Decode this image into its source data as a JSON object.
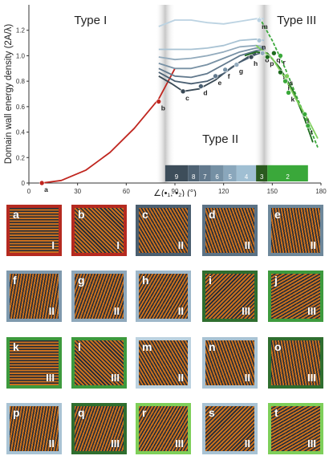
{
  "chart_data": {
    "type": "line",
    "ylabel": "Domain wall energy density (2A/λ)",
    "xlabel": "∠(•₁, •₂) (°)",
    "xlim": [
      0,
      180
    ],
    "ylim": [
      0,
      1.4
    ],
    "xticks": [
      "0",
      "30",
      "60",
      "90",
      "120",
      "150",
      "180"
    ],
    "yticks": [
      "0",
      "0.2",
      "0.4",
      "0.6",
      "0.8",
      "1.0",
      "1.2"
    ],
    "region_labels": [
      "Type I",
      "Type II",
      "Type III"
    ],
    "band_labels": [
      "9",
      "8",
      "7",
      "6",
      "5",
      "4",
      "3",
      "2"
    ],
    "series": [
      {
        "color": "#c0261f",
        "x": [
          8,
          20,
          35,
          50,
          65,
          80,
          90
        ],
        "y": [
          0,
          0.02,
          0.1,
          0.24,
          0.43,
          0.66,
          0.9
        ]
      },
      {
        "color": "#3a4a56",
        "x": [
          80,
          88,
          95,
          105,
          115,
          125,
          135,
          140
        ],
        "y": [
          0.84,
          0.78,
          0.72,
          0.74,
          0.81,
          0.91,
          0.99,
          1.02
        ]
      },
      {
        "color": "#4b6073",
        "x": [
          80,
          90,
          100,
          110,
          120,
          130,
          140,
          145
        ],
        "y": [
          0.87,
          0.8,
          0.78,
          0.8,
          0.86,
          0.95,
          1.01,
          1.03
        ]
      },
      {
        "color": "#62798d",
        "x": [
          80,
          90,
          100,
          110,
          120,
          130,
          140,
          145
        ],
        "y": [
          0.9,
          0.84,
          0.83,
          0.86,
          0.93,
          1.0,
          1.04,
          1.05
        ]
      },
      {
        "color": "#7891a5",
        "x": [
          80,
          90,
          100,
          110,
          120,
          130,
          140,
          145
        ],
        "y": [
          0.94,
          0.9,
          0.9,
          0.93,
          0.98,
          1.03,
          1.06,
          1.06
        ]
      },
      {
        "color": "#93abbd",
        "x": [
          80,
          90,
          100,
          110,
          120,
          130,
          140,
          145
        ],
        "y": [
          0.99,
          0.97,
          0.98,
          1.0,
          1.03,
          1.07,
          1.08,
          1.07
        ]
      },
      {
        "color": "#a9c3d4",
        "x": [
          80,
          90,
          100,
          110,
          120,
          130,
          140,
          145
        ],
        "y": [
          1.05,
          1.05,
          1.05,
          1.06,
          1.08,
          1.12,
          1.13,
          1.12
        ]
      },
      {
        "color": "#bcd3e2",
        "x": [
          80,
          90,
          100,
          110,
          120,
          130,
          140,
          145
        ],
        "y": [
          1.23,
          1.28,
          1.28,
          1.26,
          1.25,
          1.27,
          1.29,
          1.29
        ]
      },
      {
        "color": "#1d6b1d",
        "x": [
          133,
          140,
          147,
          155,
          163,
          170,
          175
        ],
        "y": [
          1.0,
          1.03,
          1.02,
          0.9,
          0.72,
          0.5,
          0.32
        ]
      },
      {
        "color": "#3aa83a",
        "x": [
          142,
          150,
          158,
          165,
          172,
          178
        ],
        "y": [
          1.3,
          1.12,
          0.9,
          0.68,
          0.47,
          0.28
        ]
      },
      {
        "color": "#7ecf5a",
        "x": [
          140,
          150,
          158,
          165,
          172,
          178
        ],
        "y": [
          1.08,
          0.98,
          0.82,
          0.65,
          0.5,
          0.35
        ]
      }
    ],
    "points": [
      {
        "label": "a",
        "x": 8,
        "y": 0.0,
        "color": "#c0261f"
      },
      {
        "label": "b",
        "x": 80,
        "y": 0.64,
        "color": "#c0261f"
      },
      {
        "label": "c",
        "x": 95,
        "y": 0.72,
        "color": "#3a4a56"
      },
      {
        "label": "d",
        "x": 106,
        "y": 0.76,
        "color": "#4b6073"
      },
      {
        "label": "e",
        "x": 115,
        "y": 0.84,
        "color": "#62798d"
      },
      {
        "label": "f",
        "x": 121,
        "y": 0.89,
        "color": "#7891a5"
      },
      {
        "label": "g",
        "x": 128,
        "y": 0.93,
        "color": "#93abbd"
      },
      {
        "label": "h",
        "x": 137,
        "y": 0.99,
        "color": "#3a4a56"
      },
      {
        "label": "i",
        "x": 155,
        "y": 0.87,
        "color": "#1d6b1d"
      },
      {
        "label": "j",
        "x": 158,
        "y": 0.8,
        "color": "#3aa83a"
      },
      {
        "label": "k",
        "x": 160,
        "y": 0.71,
        "color": "#3aa83a"
      },
      {
        "label": "l",
        "x": 170,
        "y": 0.54,
        "color": "#3aa83a"
      },
      {
        "label": "m",
        "x": 142,
        "y": 1.28,
        "color": "#bcd3e2"
      },
      {
        "label": "n",
        "x": 142,
        "y": 1.12,
        "color": "#a9c3d4"
      },
      {
        "label": "o",
        "x": 144,
        "y": 1.02,
        "color": "#93abbd"
      },
      {
        "label": "p",
        "x": 147,
        "y": 0.99,
        "color": "#1d6b1d"
      },
      {
        "label": "q",
        "x": 151,
        "y": 1.02,
        "color": "#1d6b1d"
      },
      {
        "label": "r",
        "x": 155,
        "y": 1.0,
        "color": "#3aa83a"
      },
      {
        "label": "s",
        "x": 159,
        "y": 0.84,
        "color": "#7ecf5a"
      },
      {
        "label": "t",
        "x": 172,
        "y": 0.45,
        "color": "#3aa83a"
      }
    ]
  },
  "panels": [
    {
      "label": "a",
      "type": "I",
      "border": "#b52a20"
    },
    {
      "label": "b",
      "type": "I",
      "border": "#b52a20"
    },
    {
      "label": "c",
      "type": "II",
      "border": "#4b5f70"
    },
    {
      "label": "d",
      "type": "II",
      "border": "#5b7285"
    },
    {
      "label": "e",
      "type": "II",
      "border": "#6e889b"
    },
    {
      "label": "f",
      "type": "II",
      "border": "#7f99ad"
    },
    {
      "label": "g",
      "type": "II",
      "border": "#8ea8bb"
    },
    {
      "label": "h",
      "type": "II",
      "border": "#9fb8ca"
    },
    {
      "label": "i",
      "type": "III",
      "border": "#2f6e2f"
    },
    {
      "label": "j",
      "type": "III",
      "border": "#3d9a3d"
    },
    {
      "label": "k",
      "type": "III",
      "border": "#3d9a3d"
    },
    {
      "label": "l",
      "type": "III",
      "border": "#3d9a3d"
    },
    {
      "label": "m",
      "type": "II",
      "border": "#bcd2e0"
    },
    {
      "label": "n",
      "type": "II",
      "border": "#a9c3d4"
    },
    {
      "label": "o",
      "type": "III",
      "border": "#2f6e2f"
    },
    {
      "label": "p",
      "type": "II",
      "border": "#a9c3d4"
    },
    {
      "label": "q",
      "type": "III",
      "border": "#2f6e2f"
    },
    {
      "label": "r",
      "type": "III",
      "border": "#7ecf5a"
    },
    {
      "label": "s",
      "type": "II",
      "border": "#a9c3d4"
    },
    {
      "label": "t",
      "type": "III",
      "border": "#7ecf5a"
    }
  ]
}
